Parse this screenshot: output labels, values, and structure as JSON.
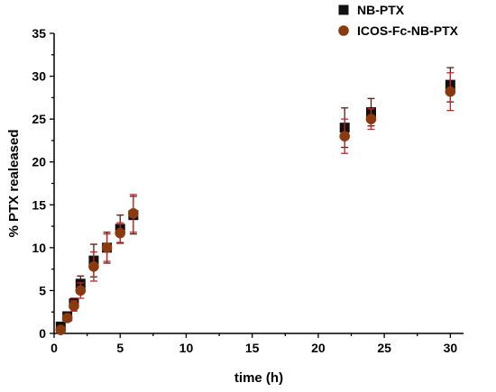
{
  "chart_data": {
    "type": "scatter",
    "xlabel": "time (h)",
    "ylabel": "% PTX realeased",
    "xlim": [
      0,
      31
    ],
    "ylim": [
      0,
      35
    ],
    "xticks": [
      0,
      5,
      10,
      15,
      20,
      25,
      30
    ],
    "yticks": [
      0,
      5,
      10,
      15,
      20,
      25,
      30,
      35
    ],
    "legend_position": "top-right",
    "series": [
      {
        "name": "NB-PTX",
        "marker": "square",
        "color": "#111111",
        "error_color": "#5a1a14",
        "x": [
          0.5,
          1,
          1.5,
          2,
          3,
          4,
          5,
          6,
          22,
          24,
          30
        ],
        "y": [
          0.8,
          2.0,
          3.5,
          5.8,
          8.5,
          10.0,
          12.2,
          13.8,
          24.0,
          25.8,
          29.0
        ],
        "err": [
          0.3,
          0.5,
          0.6,
          0.9,
          1.9,
          1.8,
          1.6,
          2.2,
          2.3,
          1.6,
          2.0
        ]
      },
      {
        "name": "ICOS-Fc-NB-PTX",
        "marker": "circle",
        "color": "#8b3a10",
        "error_color": "#cc2222",
        "x": [
          0.5,
          1,
          1.5,
          2,
          3,
          4,
          5,
          6,
          22,
          24,
          30
        ],
        "y": [
          0.4,
          1.8,
          3.2,
          5.0,
          7.8,
          10.0,
          11.7,
          14.0,
          23.0,
          25.0,
          28.2
        ],
        "err": [
          0.3,
          0.4,
          0.6,
          0.9,
          1.7,
          1.6,
          1.2,
          2.2,
          2.0,
          1.2,
          2.2
        ]
      }
    ]
  }
}
